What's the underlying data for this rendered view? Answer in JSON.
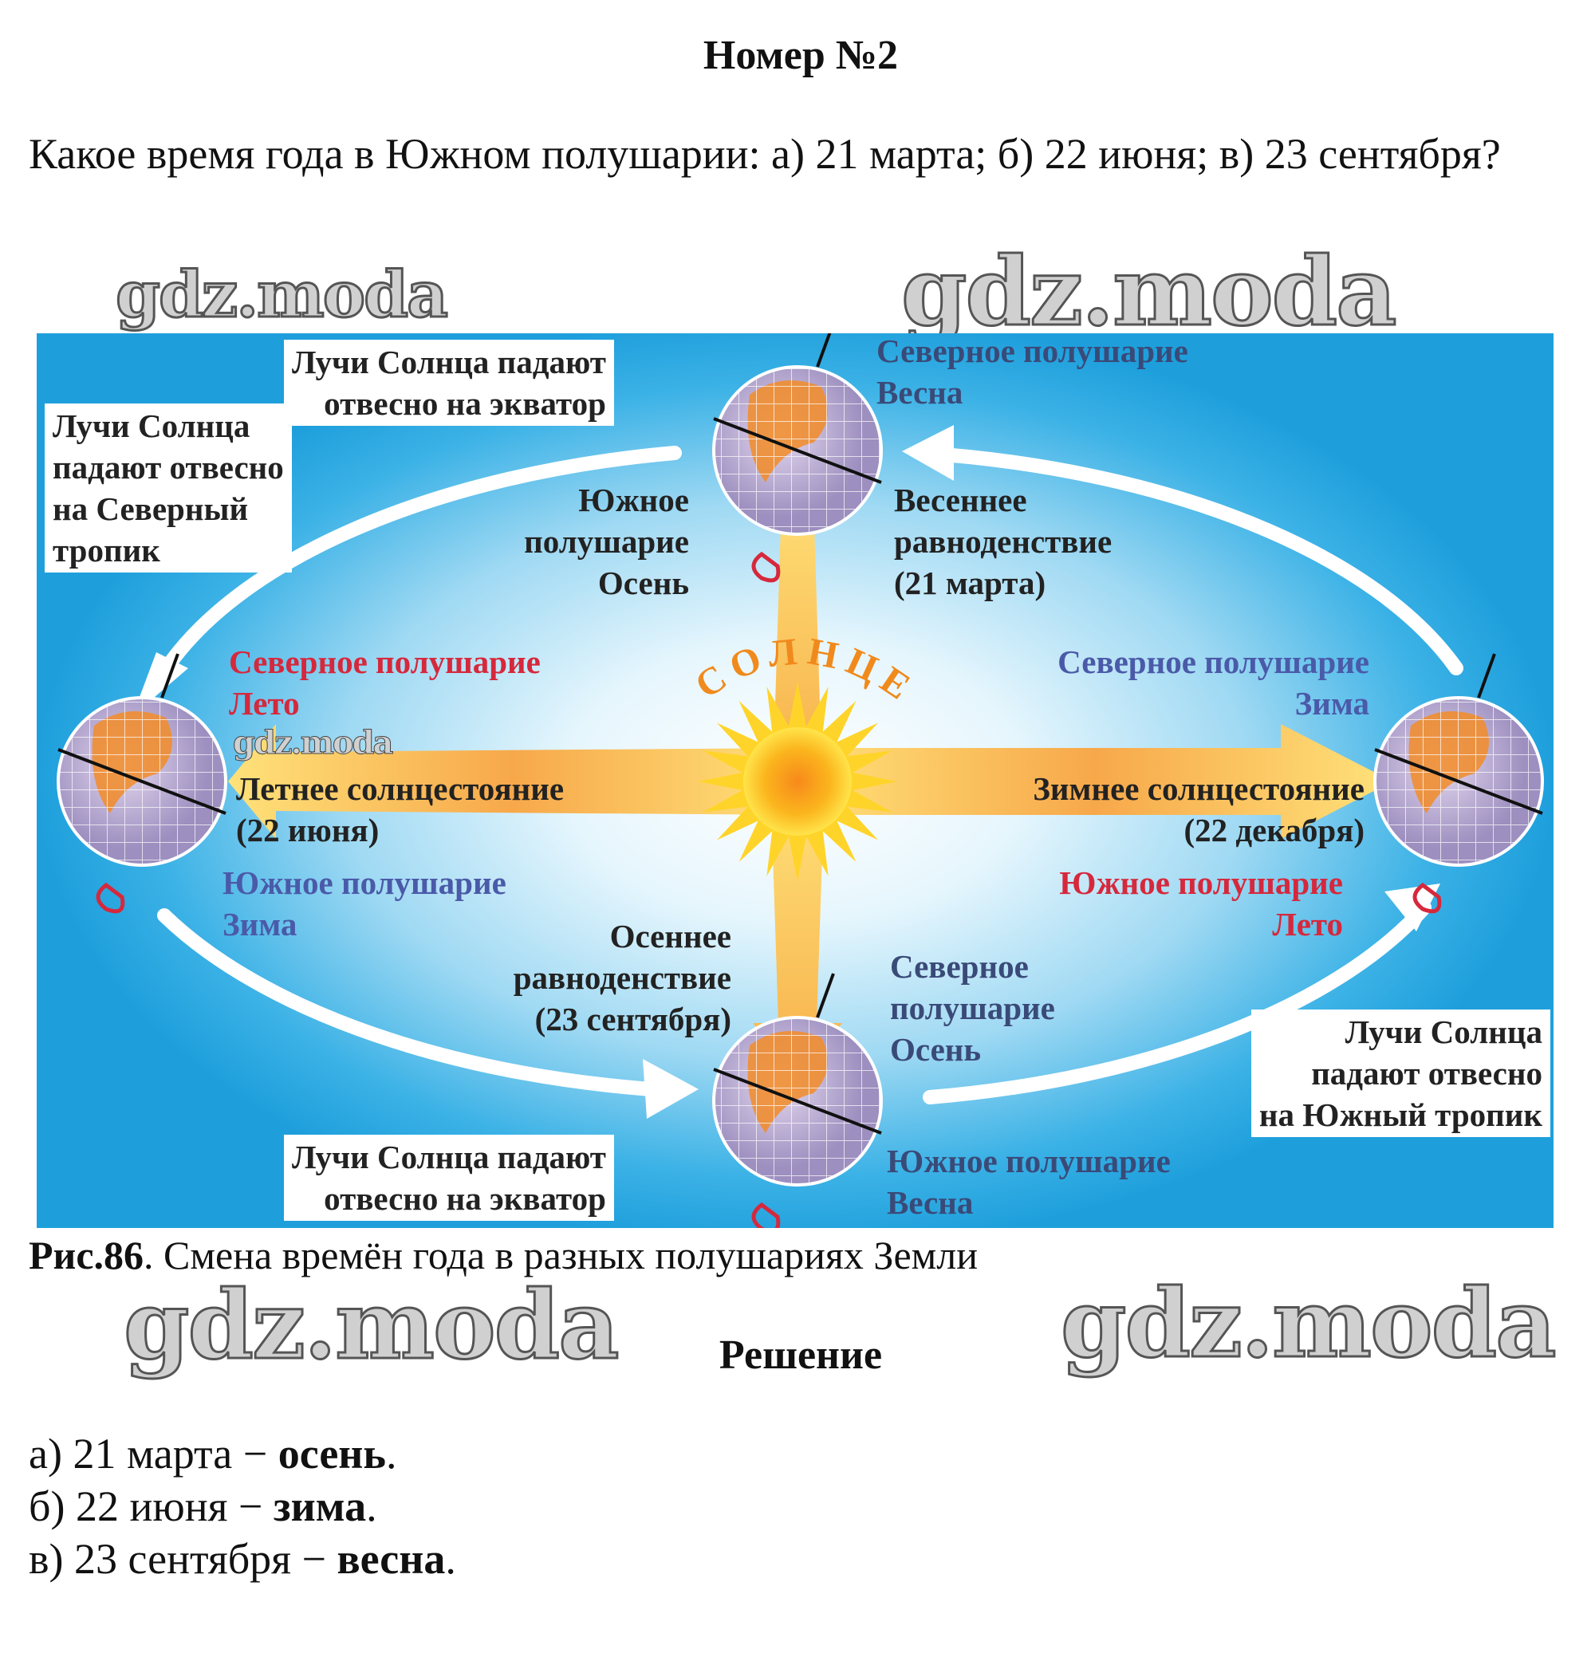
{
  "title": "Номер №2",
  "question": "Какое время года в Южном полушарии: а) 21 марта; б) 22 июня; в) 23 сентября?",
  "watermarks": [
    "gdz.moda",
    "gdz.moda",
    "gdz.moda",
    "gdz.moda",
    "gdz.moda"
  ],
  "figure": {
    "sun_label": "СОЛНЦЕ",
    "top": {
      "callout": [
        "Лучи Солнца падают",
        "отвесно на экватор"
      ],
      "north": [
        "Северное полушарие",
        "Весна"
      ],
      "south": [
        "Южное",
        "полушарие",
        "Осень"
      ],
      "event": [
        "Весеннее",
        "равноденствие",
        "(21 марта)"
      ]
    },
    "left": {
      "callout": [
        "Лучи Солнца",
        "падают отвесно",
        "на Северный",
        "тропик"
      ],
      "north": [
        "Северное полушарие",
        "Лето"
      ],
      "event": [
        "Летнее солнцестояние",
        "(22 июня)"
      ],
      "south": [
        "Южное полушарие",
        "Зима"
      ]
    },
    "bottom": {
      "event": [
        "Осеннее",
        "равноденствие",
        "(23 сентября)"
      ],
      "north": [
        "Северное",
        "полушарие",
        "Осень"
      ],
      "callout": [
        "Лучи Солнца падают",
        "отвесно на экватор"
      ],
      "south": [
        "Южное полушарие",
        "Весна"
      ]
    },
    "right": {
      "north": [
        "Северное полушарие",
        "Зима"
      ],
      "event": [
        "Зимнее солнцестояние",
        "(22 декабря)"
      ],
      "south": [
        "Южное полушарие",
        "Лето"
      ],
      "callout": [
        "Лучи Солнца",
        "падают отвесно",
        "на Южный тропик"
      ]
    },
    "colors": {
      "background": "#1e9fdc",
      "north_summer": "#d6283c",
      "winter": "#4a5aa8",
      "sun": "#f7a21b",
      "land": "#f28c28"
    }
  },
  "caption": {
    "label": "Рис.86",
    "text": ". Смена времён года в разных полушариях Земли"
  },
  "solution_title": "Решение",
  "answers": [
    {
      "prefix": "а) 21 марта − ",
      "value": "осень",
      "suffix": "."
    },
    {
      "prefix": "б) 22 июня − ",
      "value": "зима",
      "suffix": "."
    },
    {
      "prefix": "в) 23 сентября − ",
      "value": "весна",
      "suffix": "."
    }
  ]
}
